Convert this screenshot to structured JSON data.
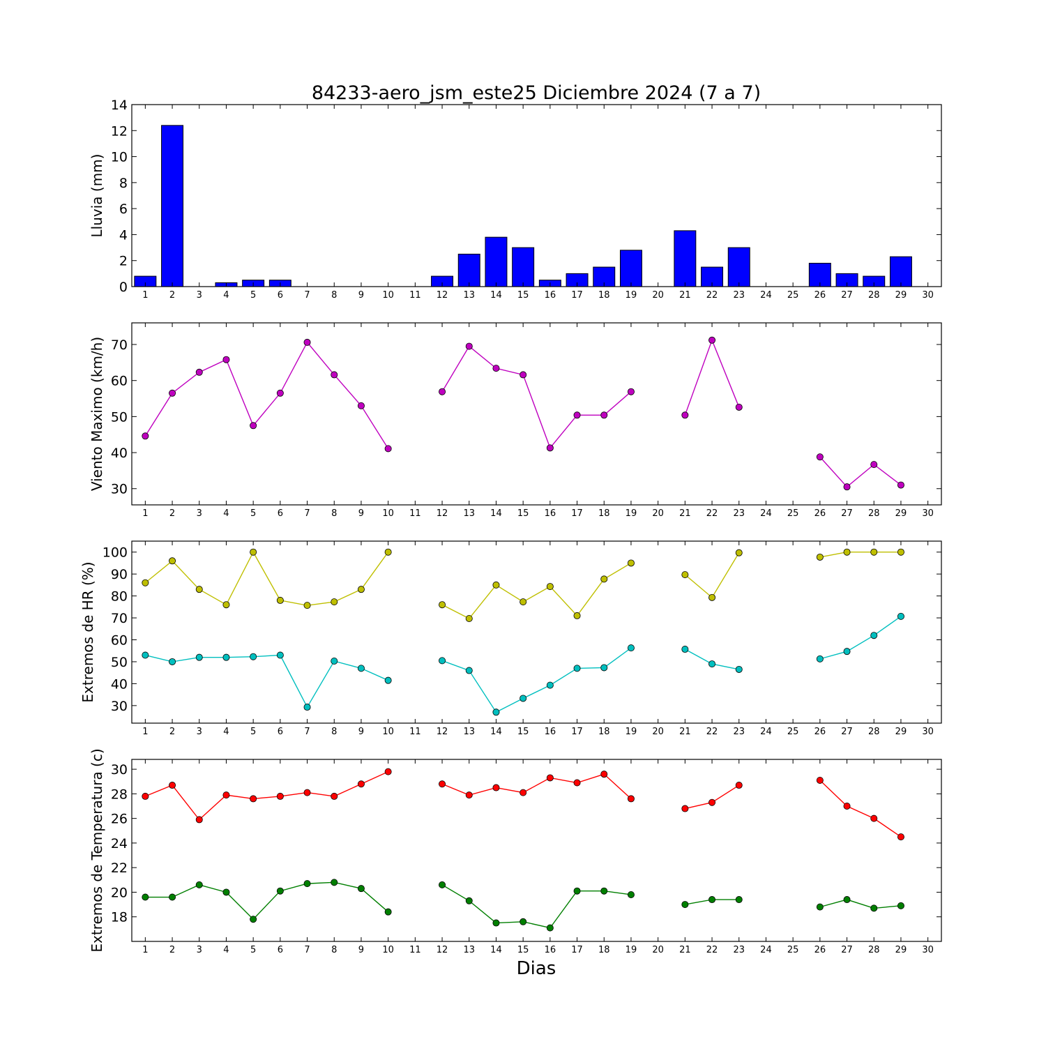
{
  "title": "84233-aero_jsm_este25 Diciembre 2024  (7 a 7)",
  "xlabel": "Dias",
  "chart_data": [
    {
      "type": "bar",
      "ylabel": "Lluvia (mm)",
      "ylim": [
        0,
        14
      ],
      "yticks": [
        0,
        2,
        4,
        6,
        8,
        10,
        12,
        14
      ],
      "xlim": [
        0.5,
        30.5
      ],
      "xticks": [
        1,
        2,
        3,
        4,
        5,
        6,
        7,
        8,
        9,
        10,
        11,
        12,
        13,
        14,
        15,
        16,
        17,
        18,
        19,
        20,
        21,
        22,
        23,
        24,
        25,
        26,
        27,
        28,
        29,
        30
      ],
      "color": "#0000ff",
      "x": [
        1,
        2,
        3,
        4,
        5,
        6,
        7,
        8,
        9,
        10,
        11,
        12,
        13,
        14,
        15,
        16,
        17,
        18,
        19,
        20,
        21,
        22,
        23,
        24,
        25,
        26,
        27,
        28,
        29,
        30
      ],
      "values": [
        0.8,
        12.4,
        0,
        0.3,
        0.5,
        0.5,
        0,
        0,
        0,
        0,
        0,
        0.8,
        2.5,
        3.8,
        3.0,
        0.5,
        1.0,
        1.5,
        2.8,
        0,
        4.3,
        1.5,
        3.0,
        0,
        0,
        1.8,
        1.0,
        0.8,
        2.3,
        0
      ]
    },
    {
      "type": "line",
      "ylabel": "Viento Maximo (km/h)",
      "ylim": [
        25.5,
        76
      ],
      "yticks": [
        30,
        40,
        50,
        60,
        70
      ],
      "xlim": [
        0.5,
        30.5
      ],
      "xticks": [
        1,
        2,
        3,
        4,
        5,
        6,
        7,
        8,
        9,
        10,
        11,
        12,
        13,
        14,
        15,
        16,
        17,
        18,
        19,
        20,
        21,
        22,
        23,
        24,
        25,
        26,
        27,
        28,
        29,
        30
      ],
      "series": [
        {
          "color": "#bf00bf",
          "x": [
            1,
            2,
            3,
            4,
            5,
            6,
            7,
            8,
            9,
            10,
            11,
            12,
            13,
            14,
            15,
            16,
            17,
            18,
            19,
            20,
            21,
            22,
            23,
            24,
            25,
            26,
            27,
            28,
            29
          ],
          "values": [
            44.6,
            56.5,
            62.3,
            65.8,
            47.5,
            56.5,
            70.6,
            61.6,
            53.0,
            41.1,
            null,
            56.9,
            69.5,
            63.4,
            61.6,
            41.3,
            50.4,
            50.4,
            56.9,
            null,
            50.4,
            71.2,
            52.6,
            null,
            null,
            38.8,
            30.5,
            36.7,
            31.0
          ]
        }
      ]
    },
    {
      "type": "line",
      "ylabel": "Extremos de HR (%)",
      "ylim": [
        22,
        105
      ],
      "yticks": [
        30,
        40,
        50,
        60,
        70,
        80,
        90,
        100
      ],
      "xlim": [
        0.5,
        30.5
      ],
      "xticks": [
        1,
        2,
        3,
        4,
        5,
        6,
        7,
        8,
        9,
        10,
        11,
        12,
        13,
        14,
        15,
        16,
        17,
        18,
        19,
        20,
        21,
        22,
        23,
        24,
        25,
        26,
        27,
        28,
        29,
        30
      ],
      "series": [
        {
          "color": "#bfbf00",
          "x": [
            1,
            2,
            3,
            4,
            5,
            6,
            7,
            8,
            9,
            10,
            11,
            12,
            13,
            14,
            15,
            16,
            17,
            18,
            19,
            20,
            21,
            22,
            23,
            24,
            25,
            26,
            27,
            28,
            29
          ],
          "values": [
            86,
            96,
            83,
            76,
            100,
            78,
            75.7,
            77.3,
            83,
            100,
            null,
            76,
            69.7,
            85,
            77.3,
            84.3,
            71,
            87.7,
            95,
            null,
            89.7,
            79.3,
            99.7,
            null,
            null,
            97.7,
            100,
            100,
            100
          ]
        },
        {
          "color": "#00bfbf",
          "x": [
            1,
            2,
            3,
            4,
            5,
            6,
            7,
            8,
            9,
            10,
            11,
            12,
            13,
            14,
            15,
            16,
            17,
            18,
            19,
            20,
            21,
            22,
            23,
            24,
            25,
            26,
            27,
            28,
            29
          ],
          "values": [
            53,
            50,
            52,
            52,
            52.3,
            53,
            29.3,
            50.3,
            47,
            41.5,
            null,
            50.5,
            46,
            27,
            33.3,
            39.3,
            47,
            47.3,
            56.3,
            null,
            55.7,
            49,
            46.5,
            null,
            null,
            51.3,
            54.7,
            62,
            70.7
          ]
        }
      ]
    },
    {
      "type": "line",
      "ylabel": "Extremos de Temperatura (c)",
      "ylim": [
        16,
        30.8
      ],
      "yticks": [
        18,
        20,
        22,
        24,
        26,
        28,
        30
      ],
      "xlim": [
        0.5,
        30.5
      ],
      "xticks": [
        1,
        2,
        3,
        4,
        5,
        6,
        7,
        8,
        9,
        10,
        11,
        12,
        13,
        14,
        15,
        16,
        17,
        18,
        19,
        20,
        21,
        22,
        23,
        24,
        25,
        26,
        27,
        28,
        29,
        30
      ],
      "series": [
        {
          "color": "#ff0000",
          "x": [
            1,
            2,
            3,
            4,
            5,
            6,
            7,
            8,
            9,
            10,
            11,
            12,
            13,
            14,
            15,
            16,
            17,
            18,
            19,
            20,
            21,
            22,
            23,
            24,
            25,
            26,
            27,
            28,
            29
          ],
          "values": [
            27.8,
            28.7,
            25.9,
            27.9,
            27.6,
            27.8,
            28.1,
            27.8,
            28.8,
            29.8,
            null,
            28.8,
            27.9,
            28.5,
            28.1,
            29.3,
            28.9,
            29.6,
            27.6,
            null,
            26.8,
            27.3,
            28.7,
            null,
            null,
            29.1,
            27.0,
            26.0,
            24.5
          ]
        },
        {
          "color": "#007f00",
          "x": [
            1,
            2,
            3,
            4,
            5,
            6,
            7,
            8,
            9,
            10,
            11,
            12,
            13,
            14,
            15,
            16,
            17,
            18,
            19,
            20,
            21,
            22,
            23,
            24,
            25,
            26,
            27,
            28,
            29
          ],
          "values": [
            19.6,
            19.6,
            20.6,
            20.0,
            17.8,
            20.1,
            20.7,
            20.8,
            20.3,
            18.4,
            null,
            20.6,
            19.3,
            17.5,
            17.6,
            17.1,
            20.1,
            20.1,
            19.8,
            null,
            19.0,
            19.4,
            19.4,
            null,
            null,
            18.8,
            19.4,
            18.7,
            18.9
          ]
        }
      ]
    }
  ]
}
